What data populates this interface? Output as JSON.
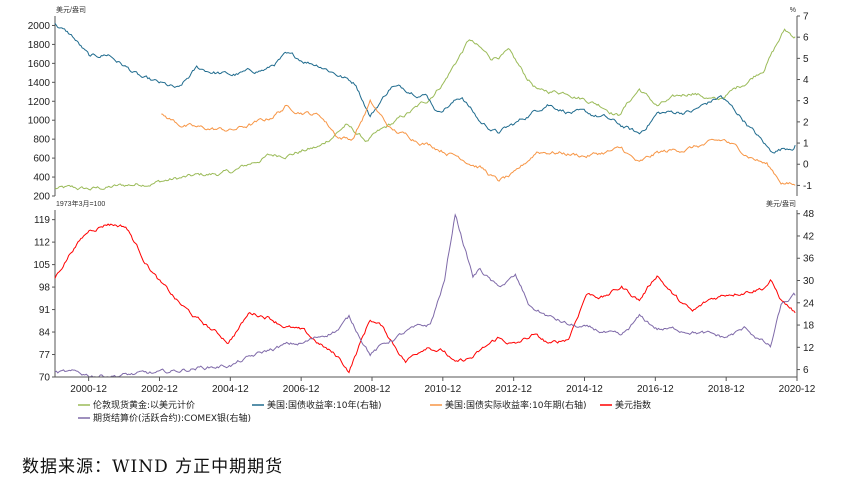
{
  "source_note": "数据来源：WIND 方正中期期货",
  "chart_data": [
    {
      "type": "line",
      "panel": "top",
      "left_unit": "美元/盎司",
      "right_unit": "%",
      "left_ylim": [
        200,
        2100
      ],
      "right_ylim": [
        -1.5,
        7
      ],
      "left_ticks": [
        200,
        400,
        600,
        800,
        1000,
        1200,
        1400,
        1600,
        1800,
        2000
      ],
      "right_ticks": [
        -1,
        0,
        1,
        2,
        3,
        4,
        5,
        6,
        7
      ],
      "series": [
        {
          "name": "伦敦现货黄金:以美元计价",
          "axis": "left",
          "color": "#9bbb59",
          "x": [
            2000.0,
            2001.0,
            2002.0,
            2003.0,
            2004.0,
            2005.0,
            2006.0,
            2006.5,
            2007.5,
            2008.2,
            2008.8,
            2009.5,
            2010.5,
            2011.0,
            2011.7,
            2012.3,
            2012.8,
            2013.3,
            2013.7,
            2014.5,
            2015.5,
            2015.9,
            2016.5,
            2017.0,
            2018.0,
            2018.7,
            2019.5,
            2020.0,
            2020.6,
            2020.9
          ],
          "values": [
            280,
            270,
            310,
            360,
            410,
            450,
            620,
            640,
            720,
            950,
            780,
            950,
            1200,
            1420,
            1850,
            1650,
            1720,
            1450,
            1300,
            1300,
            1150,
            1060,
            1330,
            1150,
            1300,
            1200,
            1400,
            1550,
            1950,
            1880
          ]
        },
        {
          "name": "美国:国债收益率:10年(右轴)",
          "axis": "right",
          "color": "#1f6b8e",
          "x": [
            2000.0,
            2000.5,
            2001.0,
            2001.5,
            2002.5,
            2003.5,
            2004.0,
            2005.0,
            2006.0,
            2006.5,
            2007.5,
            2008.5,
            2008.9,
            2009.5,
            2010.5,
            2010.8,
            2011.5,
            2012.0,
            2012.5,
            2013.0,
            2013.9,
            2014.5,
            2015.5,
            2016.5,
            2017.0,
            2018.0,
            2018.8,
            2019.5,
            2020.2,
            2020.9
          ],
          "values": [
            6.6,
            6.0,
            5.0,
            5.2,
            4.0,
            3.5,
            4.5,
            4.2,
            4.5,
            5.1,
            4.7,
            3.8,
            2.3,
            3.7,
            3.3,
            2.5,
            3.2,
            2.0,
            1.5,
            1.9,
            2.9,
            2.5,
            2.2,
            1.4,
            2.4,
            2.5,
            3.2,
            2.0,
            0.6,
            0.9
          ]
        },
        {
          "name": "美国:国债实际收益率:10年期(右轴)",
          "axis": "right",
          "color": "#f79646",
          "x": [
            2003.0,
            2003.5,
            2004.0,
            2005.0,
            2006.0,
            2006.5,
            2007.5,
            2008.0,
            2008.4,
            2008.9,
            2009.5,
            2010.5,
            2011.5,
            2012.0,
            2012.5,
            2013.0,
            2013.6,
            2014.0,
            2015.0,
            2016.0,
            2016.5,
            2017.0,
            2018.0,
            2018.9,
            2019.5,
            2020.1,
            2020.5,
            2020.9
          ],
          "values": [
            2.3,
            1.9,
            1.7,
            1.6,
            2.1,
            2.7,
            2.3,
            1.3,
            1.2,
            2.9,
            1.6,
            1.0,
            0.3,
            -0.1,
            -0.8,
            -0.5,
            0.6,
            0.6,
            0.4,
            0.7,
            0.0,
            0.5,
            0.8,
            1.1,
            0.5,
            0.0,
            -0.8,
            -1.0
          ]
        }
      ]
    },
    {
      "type": "line",
      "panel": "bottom",
      "left_unit": "1973年3月=100",
      "right_unit": "美元/盎司",
      "left_ylim": [
        70,
        122
      ],
      "right_ylim": [
        4,
        49
      ],
      "left_ticks": [
        70,
        77,
        84,
        91,
        98,
        105,
        112,
        119
      ],
      "right_ticks": [
        6,
        12,
        18,
        24,
        30,
        36,
        42,
        48
      ],
      "series": [
        {
          "name": "美元指数",
          "axis": "left",
          "color": "#ff0000",
          "x": [
            2000.0,
            2000.5,
            2001.0,
            2001.5,
            2002.0,
            2002.5,
            2003.0,
            2003.5,
            2004.0,
            2004.9,
            2005.5,
            2006.0,
            2006.5,
            2007.0,
            2007.5,
            2008.0,
            2008.3,
            2008.9,
            2009.2,
            2009.9,
            2010.5,
            2011.0,
            2011.3,
            2011.8,
            2012.5,
            2013.0,
            2013.5,
            2014.0,
            2014.5,
            2015.0,
            2015.5,
            2016.0,
            2016.5,
            2017.0,
            2017.5,
            2018.0,
            2018.5,
            2019.0,
            2019.5,
            2020.0,
            2020.2,
            2020.5,
            2020.9
          ],
          "values": [
            101,
            110,
            116,
            118,
            117,
            107,
            99,
            93,
            88,
            81,
            90,
            89,
            86,
            84,
            80,
            76,
            72,
            88,
            86,
            75,
            80,
            78,
            74,
            76,
            82,
            80,
            83,
            80,
            82,
            96,
            95,
            98,
            94,
            102,
            95,
            90,
            94,
            96,
            97,
            98,
            100,
            94,
            90
          ]
        },
        {
          "name": "期货结算价(活跃合约):COMEX银(右轴)",
          "axis": "right",
          "color": "#7f6aa9",
          "x": [
            2000.0,
            2001.0,
            2002.0,
            2003.0,
            2004.0,
            2004.5,
            2005.0,
            2006.0,
            2006.5,
            2007.0,
            2008.0,
            2008.3,
            2008.9,
            2009.5,
            2010.0,
            2010.6,
            2011.0,
            2011.3,
            2011.8,
            2012.0,
            2012.5,
            2013.0,
            2013.4,
            2014.0,
            2014.5,
            2015.5,
            2016.0,
            2016.5,
            2017.0,
            2018.0,
            2018.9,
            2019.5,
            2020.2,
            2020.5,
            2020.9
          ],
          "values": [
            5.3,
            4.5,
            4.6,
            4.9,
            6.5,
            6.8,
            7.3,
            11,
            12.5,
            13,
            17,
            20,
            10.5,
            14,
            16.5,
            18,
            30,
            48,
            31,
            33,
            28,
            31,
            23,
            20,
            18,
            16,
            14.5,
            20,
            17,
            16.5,
            14.5,
            17,
            12,
            23,
            26
          ]
        }
      ]
    }
  ],
  "x_ticks": [
    "2000-12",
    "2002-12",
    "2004-12",
    "2006-12",
    "2008-12",
    "2010-12",
    "2012-12",
    "2014-12",
    "2016-12",
    "2018-12",
    "2020-12"
  ],
  "legend": [
    {
      "name": "伦敦现货黄金:以美元计价",
      "color": "#9bbb59"
    },
    {
      "name": "美国:国债收益率:10年(右轴)",
      "color": "#1f6b8e"
    },
    {
      "name": "美国:国债实际收益率:10年期(右轴)",
      "color": "#f79646"
    },
    {
      "name": "美元指数",
      "color": "#ff0000"
    },
    {
      "name": "期货结算价(活跃合约):COMEX银(右轴)",
      "color": "#7f6aa9"
    }
  ]
}
